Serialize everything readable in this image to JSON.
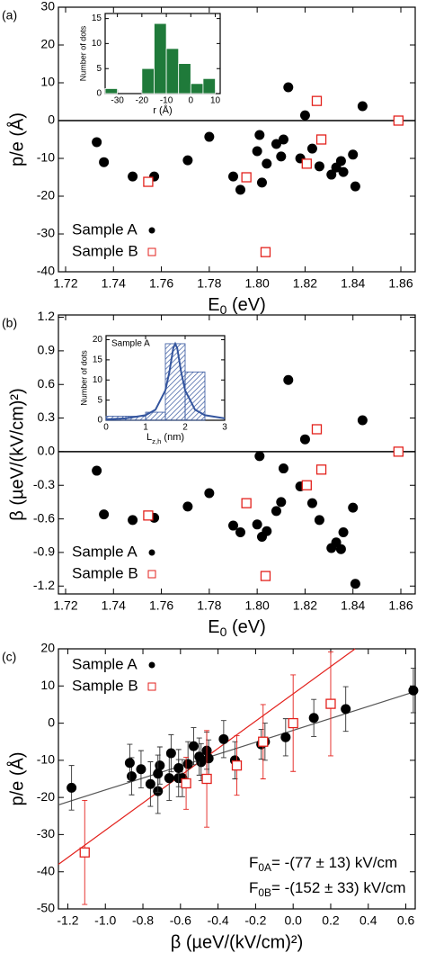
{
  "chart_data": [
    {
      "type": "scatter",
      "label": "(a)",
      "xlabel": {
        "main": "E",
        "sub": "0",
        "rest": " (eV)"
      },
      "ylabel": "p/e (Å)",
      "xlim": [
        1.717,
        1.866
      ],
      "xticks": [
        1.72,
        1.74,
        1.76,
        1.78,
        {
          "value": 1.8,
          "label": "1.80"
        },
        1.82,
        1.84,
        1.86
      ],
      "ylim": [
        -40,
        30
      ],
      "yticks": [
        -40,
        -30,
        -20,
        -10,
        0,
        10,
        20,
        30
      ],
      "zero_line": true,
      "legend": "lower left",
      "series": [
        {
          "name": "Sample A",
          "color": "#000000",
          "marker": "circle",
          "x": [
            1.733,
            1.736,
            1.748,
            1.757,
            1.771,
            1.78,
            1.79,
            1.793,
            1.8,
            1.801,
            1.802,
            1.804,
            1.808,
            1.81,
            1.811,
            1.813,
            1.818,
            1.82,
            1.823,
            1.826,
            1.831,
            1.833,
            1.835,
            1.836,
            1.84,
            1.841,
            1.844
          ],
          "values": [
            -5.7,
            -11,
            -14.8,
            -14.8,
            -10.5,
            -4.3,
            -14.8,
            -18.3,
            -8.1,
            -3.8,
            -16.4,
            -11.4,
            -6.2,
            -9.5,
            -5,
            8.8,
            -10,
            1.4,
            -7.4,
            -12.1,
            -14.3,
            -12.4,
            -10.7,
            -13.6,
            -9,
            -17.4,
            3.8
          ]
        },
        {
          "name": "Sample B",
          "color": "#e3211c",
          "marker": "square",
          "x": [
            1.7545,
            1.7955,
            1.8035,
            1.8207,
            1.8249,
            1.8268,
            1.859
          ],
          "values": [
            -16.2,
            -15,
            -34.8,
            -11.4,
            5.2,
            -5,
            0
          ]
        }
      ]
    },
    {
      "type": "histogram",
      "color": "#1f7a3a",
      "xlabel": "r (Å)",
      "ylabel": "Number of dots",
      "xlim": [
        -35,
        12
      ],
      "xticks": [
        -30,
        -20,
        -10,
        0,
        10
      ],
      "ylim": [
        0,
        16
      ],
      "yticks": [
        0,
        5,
        10,
        15
      ],
      "bins": [
        -35,
        -30,
        -25,
        -20,
        -15,
        -10,
        -5,
        0,
        5,
        10
      ],
      "values": [
        1,
        0,
        0,
        5,
        14,
        9,
        6,
        2,
        3
      ]
    },
    {
      "type": "scatter",
      "label": "(b)",
      "xlabel": {
        "main": "E",
        "sub": "0",
        "rest": " (eV)"
      },
      "ylabel": "β (µeV/(kV/cm)²)",
      "xlim": [
        1.717,
        1.866
      ],
      "xticks": [
        1.72,
        1.74,
        1.76,
        1.78,
        {
          "value": 1.8,
          "label": "1.80"
        },
        1.82,
        1.84,
        1.86
      ],
      "ylim": [
        -1.27,
        1.22
      ],
      "yticks": [
        -1.2,
        -0.9,
        -0.6,
        -0.3,
        {
          "value": 0,
          "label": "0.0"
        },
        0.3,
        0.6,
        0.9,
        1.2
      ],
      "zero_line": true,
      "legend": "lower left",
      "series": [
        {
          "name": "Sample A",
          "color": "#000000",
          "marker": "circle",
          "x": [
            1.733,
            1.736,
            1.748,
            1.757,
            1.771,
            1.78,
            1.79,
            1.793,
            1.8,
            1.801,
            1.802,
            1.804,
            1.808,
            1.81,
            1.811,
            1.813,
            1.818,
            1.82,
            1.823,
            1.826,
            1.831,
            1.833,
            1.835,
            1.836,
            1.84,
            1.841,
            1.844
          ],
          "values": [
            -0.17,
            -0.56,
            -0.61,
            -0.59,
            -0.49,
            -0.37,
            -0.66,
            -0.72,
            -0.65,
            -0.04,
            -0.76,
            -0.71,
            -0.53,
            -0.45,
            -0.15,
            0.64,
            -0.31,
            0.11,
            -0.46,
            -0.61,
            -0.86,
            -0.81,
            -0.87,
            -0.72,
            -0.5,
            -1.18,
            0.28
          ]
        },
        {
          "name": "Sample B",
          "color": "#e3211c",
          "marker": "square",
          "x": [
            1.7545,
            1.7955,
            1.8035,
            1.8207,
            1.8249,
            1.8268,
            1.859
          ],
          "values": [
            -0.57,
            -0.46,
            -1.11,
            -0.3,
            0.2,
            -0.16,
            0
          ]
        }
      ]
    },
    {
      "type": "histogram",
      "color": "#34559e",
      "title": "Sample A",
      "xlabel": {
        "main": "L",
        "sub": "z,h",
        "rest": " (nm)"
      },
      "ylabel": "Number of dots",
      "xlim": [
        0,
        3
      ],
      "xticks": [
        0,
        1,
        2,
        3
      ],
      "ylim": [
        0,
        21
      ],
      "yticks": [
        0,
        5,
        10,
        15,
        20
      ],
      "bins": [
        0,
        0.5,
        1,
        1.5,
        2,
        2.5
      ],
      "values": [
        1,
        1,
        2,
        19,
        12
      ],
      "fit": {
        "x": [
          0,
          0.5,
          1,
          1.25,
          1.5,
          1.6,
          1.7,
          1.75,
          1.8,
          1.9,
          2,
          2.25,
          2.5,
          3
        ],
        "values": [
          0.24,
          0.47,
          1.26,
          2.62,
          7.41,
          11.9,
          17.9,
          19,
          17.9,
          11.9,
          7.41,
          2.62,
          1.26,
          0.47
        ]
      }
    },
    {
      "type": "scatter",
      "label": "(c)",
      "xlabel": "β (µeV/(kV/cm)²)",
      "ylabel": "p/e (Å)",
      "xlim": [
        -1.25,
        0.65
      ],
      "xticks": [
        -1.2,
        {
          "value": -1,
          "label": "-1.0"
        },
        -0.8,
        -0.6,
        -0.4,
        -0.2,
        {
          "value": 0,
          "label": "0.0"
        },
        0.2,
        0.4,
        0.6
      ],
      "ylim": [
        -50,
        20
      ],
      "yticks": [
        -50,
        -40,
        -30,
        -20,
        -10,
        0,
        10,
        20
      ],
      "legend": "upper left",
      "series": [
        {
          "name": "Sample A",
          "color": "#000000",
          "marker": "circle",
          "x": [
            -0.17,
            -0.56,
            -0.61,
            -0.59,
            -0.49,
            -0.37,
            -0.66,
            -0.72,
            -0.65,
            -0.04,
            -0.76,
            -0.71,
            -0.53,
            -0.45,
            -0.15,
            0.64,
            -0.31,
            0.11,
            -0.46,
            -0.61,
            -0.86,
            -0.81,
            -0.87,
            -0.72,
            -0.5,
            -1.18,
            0.28
          ],
          "values": [
            -5.7,
            -11,
            -14.8,
            -14.8,
            -10.5,
            -4.3,
            -14.8,
            -18.3,
            -8.1,
            -3.8,
            -16.4,
            -11.4,
            -6.2,
            -9.5,
            -5,
            8.8,
            -10,
            1.4,
            -7.4,
            -12.1,
            -14.3,
            -12.4,
            -10.7,
            -13.6,
            -9,
            -17.4,
            3.8
          ],
          "errors": [
            4,
            6,
            5,
            5,
            5,
            5,
            6,
            6,
            5,
            5,
            6,
            5,
            5,
            5,
            5,
            6,
            5,
            5,
            5,
            5,
            5,
            5,
            5,
            5,
            5,
            6,
            6
          ]
        },
        {
          "name": "Sample B",
          "color": "#e3211c",
          "marker": "square",
          "x": [
            -0.57,
            -0.46,
            -1.11,
            -0.3,
            0.2,
            -0.16,
            0
          ],
          "values": [
            -16.2,
            -15,
            -34.8,
            -11.4,
            5.2,
            -5,
            0
          ],
          "errors": [
            7,
            13,
            14,
            8,
            14,
            10,
            13
          ]
        },
        {
          "color": "#555555",
          "marker": "line",
          "x": [
            -1.25,
            0.65
          ],
          "values": [
            -22,
            8.5
          ]
        },
        {
          "color": "#e3211c",
          "marker": "line",
          "x": [
            -1.25,
            0.33
          ],
          "values": [
            -38,
            20
          ]
        }
      ],
      "annotations": [
        {
          "main": "F",
          "sub": "0A",
          "rest": "= -(77 ± 13) kV/cm",
          "color": "#000000"
        },
        {
          "main": "F",
          "sub": "0B",
          "rest": "= -(152 ± 33) kV/cm",
          "color": "#e3211c"
        }
      ]
    }
  ]
}
